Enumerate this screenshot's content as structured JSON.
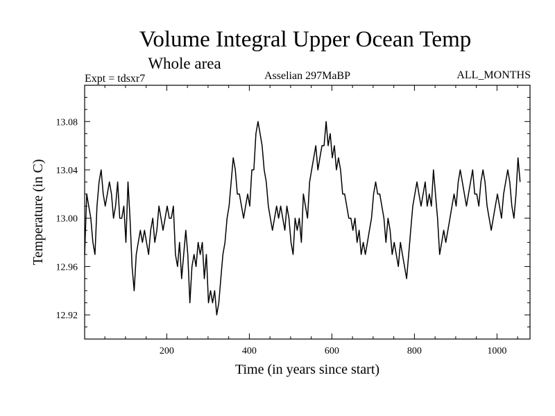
{
  "chart_data": {
    "type": "line",
    "title": "Volume Integral Upper Ocean Temp",
    "subtitle": "Whole area",
    "header_left": "Expt = tdsxr7",
    "header_center": "Asselian 297MaBP",
    "header_right": "ALL_MONTHS",
    "xlabel": "Time (in years since start)",
    "ylabel": "Temperature (in C)",
    "xlim": [
      1,
      1080
    ],
    "ylim": [
      12.9,
      13.11
    ],
    "x_ticks": [
      200,
      400,
      600,
      800,
      1000
    ],
    "x_tick_labels": [
      "200",
      "400",
      "600",
      "800",
      "1000"
    ],
    "y_ticks": [
      12.92,
      12.96,
      13.0,
      13.04,
      13.08
    ],
    "y_tick_labels": [
      "12.92",
      "12.96",
      "13.00",
      "13.04",
      "13.08"
    ],
    "grid": false,
    "series": [
      {
        "name": "Volume integral upper ocean temperature",
        "color": "#000000",
        "x_start": 1,
        "x_step": 5,
        "values": [
          12.97,
          13.02,
          13.01,
          13.0,
          12.98,
          12.97,
          13.01,
          13.03,
          13.04,
          13.02,
          13.01,
          13.02,
          13.03,
          13.02,
          13.0,
          13.01,
          13.03,
          13.0,
          13.0,
          13.01,
          12.98,
          13.03,
          13.0,
          12.96,
          12.94,
          12.97,
          12.98,
          12.99,
          12.98,
          12.99,
          12.98,
          12.97,
          12.99,
          13.0,
          12.98,
          12.99,
          13.01,
          13.0,
          12.99,
          13.0,
          13.01,
          13.0,
          13.0,
          13.01,
          12.97,
          12.96,
          12.98,
          12.95,
          12.97,
          12.99,
          12.97,
          12.93,
          12.96,
          12.97,
          12.96,
          12.98,
          12.97,
          12.98,
          12.95,
          12.97,
          12.93,
          12.94,
          12.93,
          12.94,
          12.92,
          12.93,
          12.95,
          12.97,
          12.98,
          13.0,
          13.01,
          13.03,
          13.05,
          13.04,
          13.02,
          13.02,
          13.01,
          13.0,
          13.01,
          13.02,
          13.01,
          13.04,
          13.04,
          13.07,
          13.08,
          13.07,
          13.06,
          13.04,
          13.03,
          13.01,
          13.0,
          12.99,
          13.0,
          13.01,
          13.0,
          13.01,
          13.0,
          12.99,
          13.01,
          13.0,
          12.98,
          12.97,
          13.0,
          12.99,
          13.0,
          12.98,
          13.02,
          13.01,
          13.0,
          13.03,
          13.04,
          13.05,
          13.06,
          13.04,
          13.05,
          13.06,
          13.06,
          13.08,
          13.06,
          13.07,
          13.05,
          13.06,
          13.04,
          13.05,
          13.04,
          13.02,
          13.02,
          13.01,
          13.0,
          13.0,
          12.99,
          13.0,
          12.98,
          12.99,
          12.97,
          12.98,
          12.97,
          12.98,
          12.99,
          13.0,
          13.02,
          13.03,
          13.02,
          13.02,
          13.01,
          13.0,
          12.98,
          13.0,
          12.99,
          12.97,
          12.98,
          12.97,
          12.96,
          12.98,
          12.97,
          12.96,
          12.95,
          12.97,
          12.99,
          13.01,
          13.02,
          13.03,
          13.02,
          13.01,
          13.02,
          13.03,
          13.01,
          13.02,
          13.01,
          13.04,
          13.02,
          13.0,
          12.97,
          12.98,
          12.99,
          12.98,
          12.99,
          13.0,
          13.01,
          13.02,
          13.01,
          13.03,
          13.04,
          13.03,
          13.02,
          13.01,
          13.02,
          13.03,
          13.04,
          13.02,
          13.02,
          13.01,
          13.03,
          13.04,
          13.03,
          13.01,
          13.0,
          12.99,
          13.0,
          13.01,
          13.02,
          13.01,
          13.0,
          13.02,
          13.03,
          13.04,
          13.03,
          13.01,
          13.0,
          13.02,
          13.05,
          13.03
        ]
      }
    ]
  }
}
